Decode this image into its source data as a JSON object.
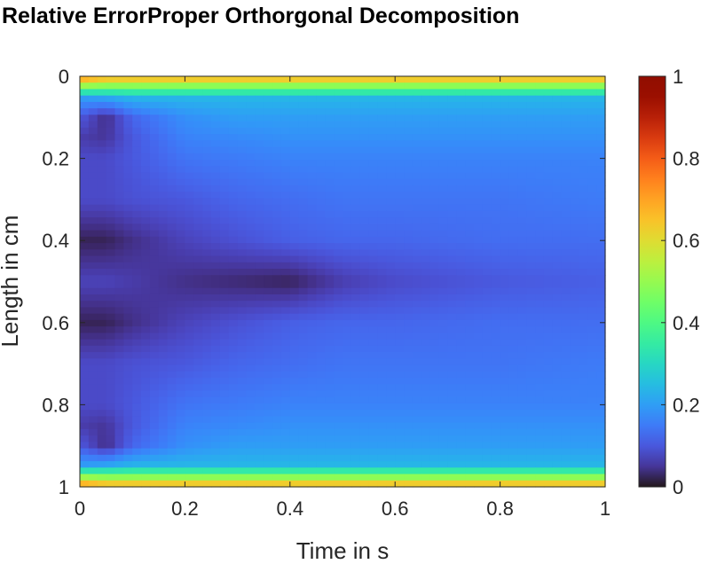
{
  "chart_data": {
    "type": "heatmap",
    "title": "Relative ErrorProper Orthorgonal Decomposition",
    "xlabel": "Time in s",
    "ylabel": "Length in cm",
    "xlim": [
      0,
      1
    ],
    "ylim": [
      0,
      1
    ],
    "y_reversed": true,
    "x_ticks": [
      0,
      0.2,
      0.4,
      0.6,
      0.8,
      1
    ],
    "x_tick_labels": [
      "0",
      "0.2",
      "0.4",
      "0.6",
      "0.8",
      "1"
    ],
    "y_ticks": [
      0,
      0.2,
      0.4,
      0.6,
      0.8,
      1
    ],
    "y_tick_labels": [
      "0",
      "0.2",
      "0.4",
      "0.6",
      "0.8",
      "1"
    ],
    "colorbar": {
      "colormap": "turbo",
      "range": [
        0,
        1
      ],
      "ticks": [
        0,
        0.2,
        0.4,
        0.6,
        0.8,
        1
      ],
      "tick_labels": [
        "0",
        "0.2",
        "0.4",
        "0.6",
        "0.8",
        "1"
      ]
    },
    "grid": false,
    "length_samples": [
      0,
      0.02,
      0.05,
      0.1,
      0.15,
      0.2,
      0.3,
      0.4,
      0.5,
      0.6,
      0.7,
      0.8,
      0.85,
      0.9,
      0.95,
      0.98,
      1
    ],
    "time_samples": [
      0,
      0.05,
      0.1,
      0.2,
      0.3,
      0.4,
      0.5,
      0.6,
      0.8,
      1
    ],
    "relative_error": [
      [
        0.75,
        0.7,
        0.7,
        0.7,
        0.7,
        0.7,
        0.7,
        0.7,
        0.7,
        0.7
      ],
      [
        0.55,
        0.52,
        0.52,
        0.52,
        0.52,
        0.52,
        0.52,
        0.52,
        0.52,
        0.52
      ],
      [
        0.2,
        0.22,
        0.24,
        0.24,
        0.24,
        0.24,
        0.24,
        0.24,
        0.24,
        0.24
      ],
      [
        0.1,
        0.04,
        0.12,
        0.18,
        0.2,
        0.2,
        0.2,
        0.2,
        0.2,
        0.2
      ],
      [
        0.06,
        0.05,
        0.1,
        0.16,
        0.17,
        0.18,
        0.18,
        0.18,
        0.18,
        0.18
      ],
      [
        0.08,
        0.08,
        0.1,
        0.14,
        0.15,
        0.16,
        0.16,
        0.16,
        0.16,
        0.16
      ],
      [
        0.08,
        0.08,
        0.09,
        0.1,
        0.12,
        0.13,
        0.14,
        0.14,
        0.14,
        0.15
      ],
      [
        0.02,
        0.02,
        0.04,
        0.07,
        0.09,
        0.11,
        0.12,
        0.12,
        0.13,
        0.13
      ],
      [
        0.07,
        0.07,
        0.06,
        0.04,
        0.03,
        0.02,
        0.06,
        0.08,
        0.1,
        0.11
      ],
      [
        0.02,
        0.02,
        0.04,
        0.07,
        0.09,
        0.11,
        0.12,
        0.12,
        0.13,
        0.13
      ],
      [
        0.08,
        0.08,
        0.09,
        0.1,
        0.12,
        0.13,
        0.14,
        0.14,
        0.14,
        0.15
      ],
      [
        0.08,
        0.08,
        0.1,
        0.14,
        0.15,
        0.16,
        0.16,
        0.16,
        0.16,
        0.16
      ],
      [
        0.06,
        0.05,
        0.1,
        0.16,
        0.17,
        0.18,
        0.18,
        0.18,
        0.18,
        0.18
      ],
      [
        0.1,
        0.04,
        0.12,
        0.18,
        0.2,
        0.2,
        0.2,
        0.2,
        0.2,
        0.2
      ],
      [
        0.2,
        0.22,
        0.24,
        0.24,
        0.24,
        0.24,
        0.24,
        0.24,
        0.24,
        0.24
      ],
      [
        0.55,
        0.52,
        0.52,
        0.52,
        0.52,
        0.52,
        0.52,
        0.52,
        0.52,
        0.52
      ],
      [
        0.75,
        0.7,
        0.7,
        0.7,
        0.7,
        0.7,
        0.7,
        0.7,
        0.7,
        0.7
      ]
    ]
  }
}
